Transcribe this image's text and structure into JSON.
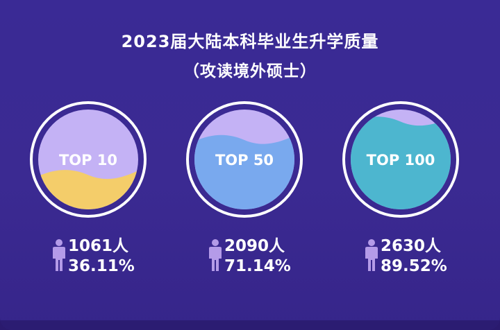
{
  "header": {
    "title": "2023届大陆本科毕业生升学质量",
    "subtitle": "（攻读境外硕士）"
  },
  "chart_data": {
    "type": "gauge",
    "series": [
      {
        "label": "TOP 10",
        "count": "1061人",
        "percent_text": "36.11%",
        "value": 36.11,
        "color": "#f4cd6a",
        "empty_color": "#c4b2f5"
      },
      {
        "label": "TOP 50",
        "count": "2090人",
        "percent_text": "71.14%",
        "value": 71.14,
        "color": "#79a9ee",
        "empty_color": "#c4b2f5"
      },
      {
        "label": "TOP 100",
        "count": "2630人",
        "percent_text": "89.52%",
        "value": 89.52,
        "color": "#4db6cf",
        "empty_color": "#c4b2f5"
      }
    ]
  },
  "icons": {
    "stat_icon": "person-icon",
    "icon_color": "#b49be8"
  }
}
